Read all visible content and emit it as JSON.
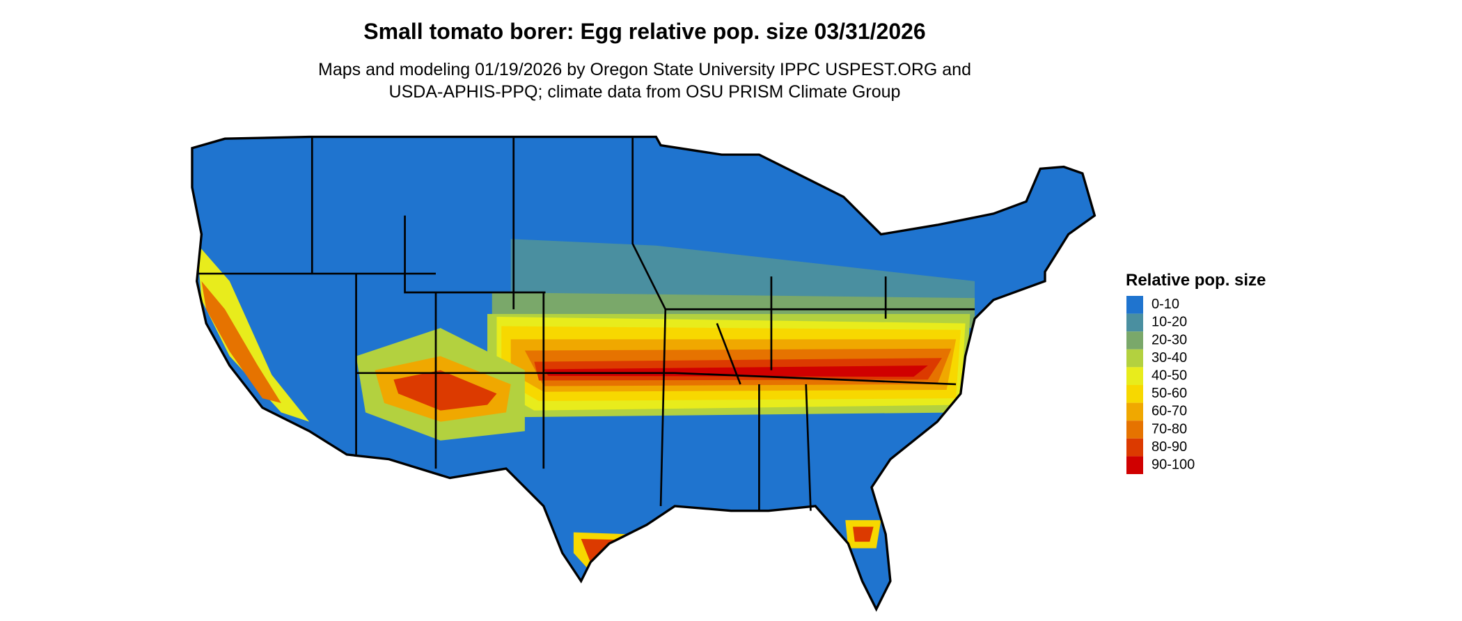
{
  "title": "Small tomato borer: Egg relative pop. size 03/31/2026",
  "subtitle": [
    "Maps and modeling 01/19/2026 by Oregon State University IPPC USPEST.ORG and",
    "USDA-APHIS-PPQ; climate data from OSU PRISM Climate Group"
  ],
  "legend": {
    "title": "Relative pop. size",
    "items": [
      {
        "label": "0-10",
        "color": "#1f74cf"
      },
      {
        "label": "10-20",
        "color": "#4a8fa0"
      },
      {
        "label": "20-30",
        "color": "#7aa86a"
      },
      {
        "label": "30-40",
        "color": "#b3d13f"
      },
      {
        "label": "40-50",
        "color": "#e8ec1c"
      },
      {
        "label": "50-60",
        "color": "#f7d800"
      },
      {
        "label": "60-70",
        "color": "#f0a800"
      },
      {
        "label": "70-80",
        "color": "#e67300"
      },
      {
        "label": "80-90",
        "color": "#dc3a00"
      },
      {
        "label": "90-100",
        "color": "#d00000"
      }
    ]
  }
}
